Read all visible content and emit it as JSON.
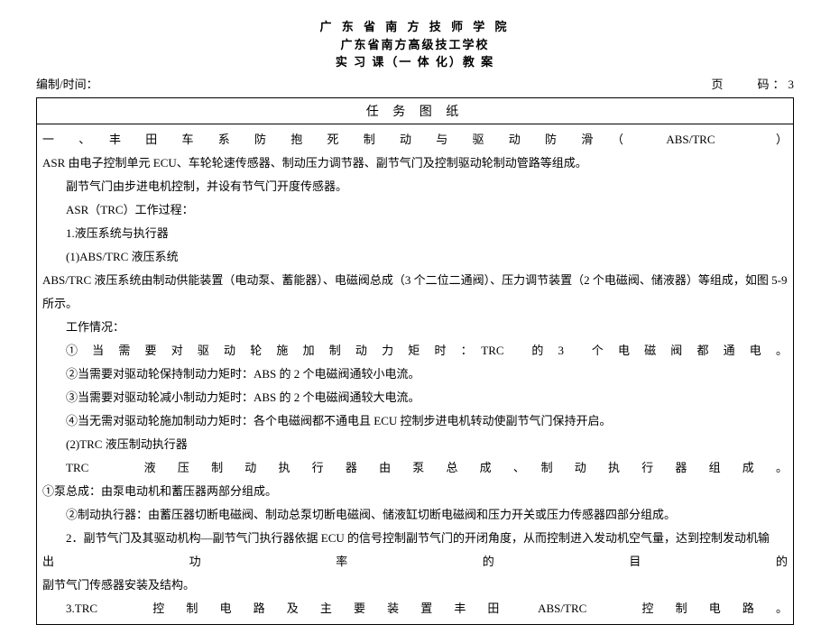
{
  "header": {
    "line1": "广 东 省 南 方 技 师 学 院",
    "line2": "广东省南方高级技工学校",
    "line3": "实 习 课（一 体 化）教 案"
  },
  "meta": {
    "left_label": "编制/时间：",
    "page_label": "页　　码：",
    "page_num": "3"
  },
  "task_header": "任 务 图 纸",
  "content": {
    "l1": "一　、　丰　田　车　系　防　抱　死　制　动　与　驱　动　防　滑　（　　ABS/TRC　　　）",
    "l2": "ASR 由电子控制单元 ECU、车轮轮速传感器、制动压力调节器、副节气门及控制驱动轮制动管路等组成。",
    "l3": "副节气门由步进电机控制，并设有节气门开度传感器。",
    "l4": "ASR（TRC）工作过程：",
    "l5": "1.液压系统与执行器",
    "l6": "(1)ABS/TRC 液压系统",
    "l7": "ABS/TRC 液压系统由制动供能装置（电动泵、蓄能器）、电磁阀总成（3 个二位二通阀）、压力调节装置（2 个电磁阀、储液器）等组成，如图 5-9",
    "l7b": "所示。",
    "l8": "工作情况：",
    "l9": "①　当　需　要　对　驱　动　轮　施　加　制　动　力　矩　时　：　TRC　　的　3　　个　电　磁　阀　都　通　电　。",
    "l10": "②当需要对驱动轮保持制动力矩时：ABS 的 2 个电磁阀通较小电流。",
    "l11": "③当需要对驱动轮减小制动力矩时：ABS 的 2 个电磁阀通较大电流。",
    "l12": "④当无需对驱动轮施加制动力矩时：各个电磁阀都不通电且 ECU 控制步进电机转动使副节气门保持开启。",
    "l13": "(2)TRC 液压制动执行器",
    "l14": "TRC　　　液　压　制　动　执　行　器　由　泵　总　成　、　制　动　执　行　器　组　成　。",
    "l15": "①泵总成：由泵电动机和蓄压器两部分组成。",
    "l16": "②制动执行器：由蓄压器切断电磁阀、制动总泵切断电磁阀、储液缸切断电磁阀和压力开关或压力传感器四部分组成。",
    "l17": "2．副节气门及其驱动机构—副节气门执行器依据 ECU 的信号控制副节气门的开闭角度，从而控制进入发动机空气量，达到控制发动机输",
    "l18": "出　　　　　　功　　　　　　率　　　　　　的　　　　　　目　　　　　　的",
    "l19": "副节气门传感器安装及结构。",
    "l20": "3.TRC　　　控　制　电　路　及　主　要　装　置　丰　田　　ABS/TRC　　　控　制　电　路　。"
  }
}
